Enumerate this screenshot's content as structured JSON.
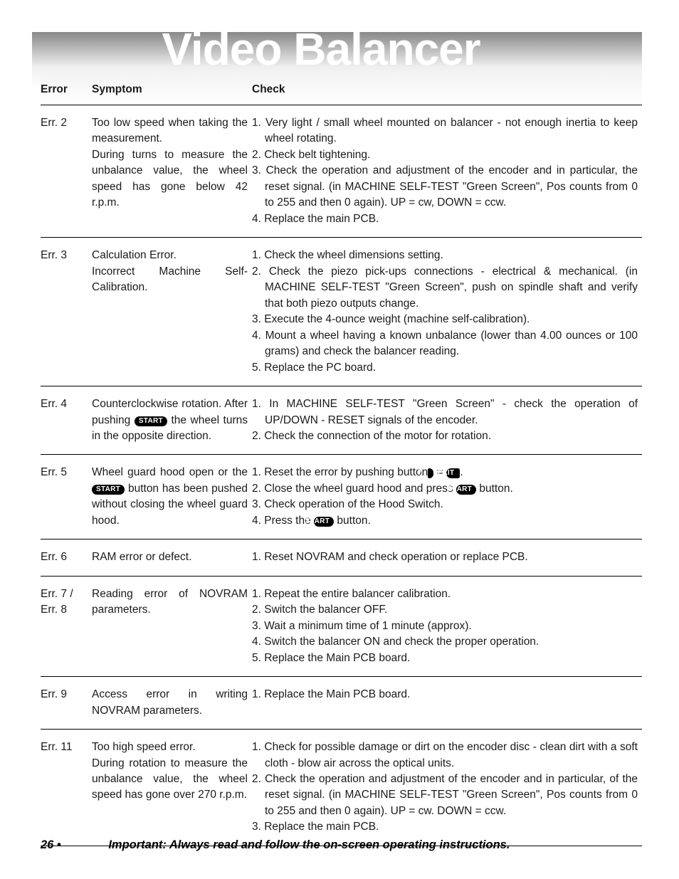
{
  "watermark_text": "Video Balancer",
  "columns": {
    "error": "Error",
    "symptom": "Symptom",
    "check": "Check"
  },
  "labels": {
    "start": "START",
    "exit": "EXIT",
    "seven": "7"
  },
  "rows": [
    {
      "error": "Err. 2",
      "symptom": "Too low speed when taking the measurement.\nDuring turns to measure the unbalance value, the wheel speed has gone below 42 r.p.m.",
      "checks": [
        "Very light / small wheel mounted on balancer - not enough inertia to keep wheel rotating.",
        "Check belt tightening.",
        "Check the operation and adjustment of the encoder and in particular, the reset signal. (in MACHINE SELF-TEST \"Green Screen\", Pos counts from 0 to 255 and then 0 again). UP = cw, DOWN = ccw.",
        "Replace the main PCB."
      ]
    },
    {
      "error": "Err. 3",
      "symptom": "Calculation Error.\nIncorrect Machine Self-Calibration.",
      "checks": [
        "Check the wheel dimensions setting.",
        "Check the piezo pick-ups connections - electrical & mechanical. (in MACHINE SELF-TEST \"Green Screen\", push on spindle shaft and verify that both piezo outputs change.",
        "Execute the 4-ounce weight (machine self-calibration).",
        "Mount a wheel having a known unbalance (lower than 4.00 ounces or 100 grams) and check the balancer reading.",
        "Replace the PC board."
      ]
    },
    {
      "error": "Err. 4",
      "symptom_parts": [
        "Counterclockwise rotation.\nAfter pushing ",
        {
          "pill": "start"
        },
        " the wheel turns in the opposite direction."
      ],
      "checks": [
        "In MACHINE SELF-TEST \"Green Screen\" - check the operation of UP/DOWN - RESET signals of the encoder.",
        "Check the connection of the motor for rotation."
      ]
    },
    {
      "error": "Err. 5",
      "symptom_parts": [
        "Wheel guard hood open or the ",
        {
          "pill": "start"
        },
        " button has been pushed without closing the wheel guard hood."
      ],
      "checks_parts": [
        [
          "Reset the error by pushing button",
          {
            "pillseven": "seven"
          },
          " = ",
          {
            "pillinv": "exit"
          },
          "."
        ],
        [
          "Close the wheel guard hood and press ",
          {
            "pill": "start"
          },
          " button."
        ],
        [
          "Check operation of the Hood Switch."
        ],
        [
          "Press the ",
          {
            "pill": "start"
          },
          " button."
        ]
      ]
    },
    {
      "error": "Err. 6",
      "symptom": "RAM error or defect.",
      "checks": [
        "Reset NOVRAM and check operation or replace PCB."
      ]
    },
    {
      "error": "Err. 7 / Err. 8",
      "symptom": "Reading error of NOVRAM parameters.",
      "checks": [
        "Repeat the entire balancer calibration.",
        "Switch the balancer OFF.",
        "Wait a minimum time of 1 minute (approx).",
        "Switch the balancer ON and check the proper operation.",
        "Replace the Main PCB board."
      ]
    },
    {
      "error": "Err. 9",
      "symptom": "Access error in writing NOVRAM parameters.",
      "checks": [
        "Replace the Main PCB board."
      ]
    },
    {
      "error": "Err. 11",
      "symptom": "Too high speed error.\nDuring rotation to measure the unbalance value, the wheel speed has gone over 270 r.p.m.",
      "checks": [
        "Check for possible damage or dirt on the encoder disc - clean dirt with a soft cloth - blow air across the optical units.",
        "Check the operation and adjustment of the encoder and in particular, of the reset signal. (in MACHINE SELF-TEST \"Green Screen\", Pos counts from 0 to 255 and then 0 again). UP = cw. DOWN = ccw.",
        "Replace the main PCB."
      ]
    }
  ],
  "footer": {
    "page": "26 •",
    "note": "Important: Always read and follow the on-screen operating instructions."
  }
}
